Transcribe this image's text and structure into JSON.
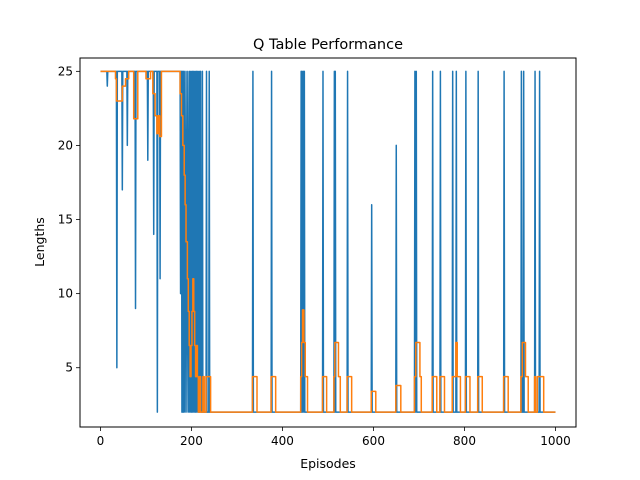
{
  "chart_data": {
    "type": "line",
    "title": "Q Table Performance",
    "xlabel": "Episodes",
    "ylabel": "Lengths",
    "xlim": [
      -45,
      1045
    ],
    "ylim": [
      1.0,
      25.9
    ],
    "xticks": [
      0,
      200,
      400,
      600,
      800,
      1000
    ],
    "yticks": [
      5,
      10,
      15,
      20,
      25
    ],
    "grid": false,
    "series": [
      {
        "color": "#1f77b4",
        "points": [
          [
            0,
            25
          ],
          [
            14,
            25
          ],
          [
            15,
            24
          ],
          [
            16,
            25
          ],
          [
            35,
            25
          ],
          [
            36,
            5
          ],
          [
            37,
            25
          ],
          [
            47,
            25
          ],
          [
            48,
            17
          ],
          [
            49,
            25
          ],
          [
            58,
            25
          ],
          [
            59,
            20
          ],
          [
            60,
            25
          ],
          [
            76,
            25
          ],
          [
            77,
            9
          ],
          [
            78,
            25
          ],
          [
            103,
            25
          ],
          [
            104,
            19
          ],
          [
            105,
            25
          ],
          [
            116,
            25
          ],
          [
            117,
            14
          ],
          [
            118,
            25
          ],
          [
            124,
            25
          ],
          [
            125,
            2
          ],
          [
            126,
            25
          ],
          [
            130,
            25
          ],
          [
            131,
            11
          ],
          [
            132,
            25
          ],
          [
            175,
            25
          ],
          [
            176,
            10
          ],
          [
            177,
            25
          ],
          [
            178,
            25
          ],
          [
            179,
            2
          ],
          [
            180,
            25
          ],
          [
            181,
            2
          ],
          [
            182,
            25
          ],
          [
            183,
            2
          ],
          [
            184,
            25
          ],
          [
            186,
            2
          ],
          [
            188,
            25
          ],
          [
            190,
            2
          ],
          [
            192,
            25
          ],
          [
            194,
            2
          ],
          [
            196,
            25
          ],
          [
            197,
            2
          ],
          [
            199,
            25
          ],
          [
            200,
            2
          ],
          [
            202,
            25
          ],
          [
            203,
            2
          ],
          [
            205,
            25
          ],
          [
            206,
            2
          ],
          [
            208,
            25
          ],
          [
            209,
            2
          ],
          [
            211,
            25
          ],
          [
            212,
            2
          ],
          [
            214,
            25
          ],
          [
            215,
            2
          ],
          [
            217,
            25
          ],
          [
            218,
            2
          ],
          [
            220,
            25
          ],
          [
            221,
            2
          ],
          [
            223,
            2
          ],
          [
            224,
            25
          ],
          [
            225,
            2
          ],
          [
            232,
            2
          ],
          [
            233,
            25
          ],
          [
            234,
            2
          ],
          [
            238,
            2
          ],
          [
            239,
            25
          ],
          [
            240,
            2
          ],
          [
            334,
            2
          ],
          [
            335,
            25
          ],
          [
            336,
            2
          ],
          [
            375,
            2
          ],
          [
            376,
            25
          ],
          [
            377,
            2
          ],
          [
            440,
            2
          ],
          [
            441,
            25
          ],
          [
            442,
            2
          ],
          [
            443,
            25
          ],
          [
            444,
            2
          ],
          [
            446,
            25
          ],
          [
            447,
            2
          ],
          [
            448,
            25
          ],
          [
            449,
            2
          ],
          [
            488,
            2
          ],
          [
            489,
            25
          ],
          [
            490,
            2
          ],
          [
            513,
            2
          ],
          [
            514,
            25
          ],
          [
            515,
            2
          ],
          [
            516,
            25
          ],
          [
            517,
            2
          ],
          [
            542,
            2
          ],
          [
            543,
            25
          ],
          [
            544,
            2
          ],
          [
            595,
            2
          ],
          [
            596,
            16
          ],
          [
            597,
            2
          ],
          [
            649,
            2
          ],
          [
            650,
            20
          ],
          [
            651,
            2
          ],
          [
            690,
            2
          ],
          [
            691,
            25
          ],
          [
            692,
            2
          ],
          [
            694,
            25
          ],
          [
            695,
            2
          ],
          [
            729,
            2
          ],
          [
            730,
            25
          ],
          [
            731,
            2
          ],
          [
            746,
            2
          ],
          [
            747,
            25
          ],
          [
            748,
            2
          ],
          [
            773,
            2
          ],
          [
            774,
            25
          ],
          [
            775,
            2
          ],
          [
            781,
            2
          ],
          [
            782,
            25
          ],
          [
            783,
            2
          ],
          [
            802,
            2
          ],
          [
            803,
            25
          ],
          [
            804,
            2
          ],
          [
            829,
            2
          ],
          [
            830,
            25
          ],
          [
            831,
            2
          ],
          [
            886,
            2
          ],
          [
            887,
            25
          ],
          [
            888,
            2
          ],
          [
            924,
            2
          ],
          [
            925,
            25
          ],
          [
            926,
            2
          ],
          [
            929,
            2
          ],
          [
            930,
            25
          ],
          [
            931,
            2
          ],
          [
            954,
            2
          ],
          [
            955,
            25
          ],
          [
            956,
            2
          ],
          [
            964,
            2
          ],
          [
            965,
            25
          ],
          [
            966,
            2
          ],
          [
            1000,
            2
          ]
        ]
      },
      {
        "color": "#ff7f0e",
        "points": [
          [
            0,
            25
          ],
          [
            33,
            25
          ],
          [
            33,
            24.5
          ],
          [
            35,
            24.5
          ],
          [
            35,
            23
          ],
          [
            48,
            23
          ],
          [
            48,
            24
          ],
          [
            55,
            24
          ],
          [
            55,
            24.5
          ],
          [
            62,
            24.5
          ],
          [
            62,
            25
          ],
          [
            73,
            25
          ],
          [
            73,
            21.8
          ],
          [
            82,
            21.8
          ],
          [
            82,
            25
          ],
          [
            100,
            25
          ],
          [
            100,
            24.5
          ],
          [
            110,
            24.5
          ],
          [
            110,
            25
          ],
          [
            115,
            25
          ],
          [
            115,
            23.5
          ],
          [
            120,
            23.5
          ],
          [
            120,
            22
          ],
          [
            124,
            22
          ],
          [
            124,
            20.8
          ],
          [
            127,
            20.8
          ],
          [
            127,
            22
          ],
          [
            130,
            22
          ],
          [
            130,
            20.6
          ],
          [
            134,
            20.6
          ],
          [
            134,
            25
          ],
          [
            173,
            25
          ],
          [
            173,
            25
          ],
          [
            175,
            25
          ],
          [
            175,
            23.5
          ],
          [
            178,
            23.5
          ],
          [
            178,
            22
          ],
          [
            181,
            22
          ],
          [
            181,
            20
          ],
          [
            184,
            20
          ],
          [
            184,
            18
          ],
          [
            186,
            18
          ],
          [
            186,
            16
          ],
          [
            188,
            16
          ],
          [
            188,
            13.5
          ],
          [
            191,
            13.5
          ],
          [
            191,
            11
          ],
          [
            193,
            11
          ],
          [
            193,
            8.8
          ],
          [
            195,
            8.8
          ],
          [
            195,
            6.5
          ],
          [
            197,
            6.5
          ],
          [
            197,
            4.4
          ],
          [
            199,
            4.4
          ],
          [
            199,
            6.5
          ],
          [
            201,
            6.5
          ],
          [
            201,
            8.8
          ],
          [
            203,
            8.8
          ],
          [
            203,
            11
          ],
          [
            205,
            11
          ],
          [
            205,
            8.8
          ],
          [
            207,
            8.8
          ],
          [
            207,
            6.5
          ],
          [
            209,
            6.5
          ],
          [
            209,
            4.4
          ],
          [
            211,
            4.4
          ],
          [
            211,
            6.5
          ],
          [
            213,
            6.5
          ],
          [
            213,
            4.4
          ],
          [
            215,
            4.4
          ],
          [
            215,
            2
          ],
          [
            218,
            2
          ],
          [
            218,
            4.4
          ],
          [
            220,
            4.4
          ],
          [
            220,
            2
          ],
          [
            225,
            2
          ],
          [
            225,
            4.4
          ],
          [
            228,
            4.4
          ],
          [
            228,
            2
          ],
          [
            232,
            2
          ],
          [
            232,
            4.4
          ],
          [
            242,
            4.4
          ],
          [
            242,
            2
          ],
          [
            334,
            2
          ],
          [
            334,
            4.4
          ],
          [
            344,
            4.4
          ],
          [
            344,
            2
          ],
          [
            375,
            2
          ],
          [
            375,
            4.4
          ],
          [
            385,
            4.4
          ],
          [
            385,
            2
          ],
          [
            440,
            2
          ],
          [
            440,
            4.4
          ],
          [
            442,
            4.4
          ],
          [
            442,
            6.7
          ],
          [
            444,
            6.7
          ],
          [
            444,
            8.9
          ],
          [
            447,
            8.9
          ],
          [
            447,
            6.7
          ],
          [
            450,
            6.7
          ],
          [
            450,
            4.4
          ],
          [
            455,
            4.4
          ],
          [
            455,
            2
          ],
          [
            488,
            2
          ],
          [
            488,
            4.4
          ],
          [
            497,
            4.4
          ],
          [
            497,
            2
          ],
          [
            513,
            2
          ],
          [
            513,
            4.4
          ],
          [
            515,
            4.4
          ],
          [
            515,
            6.7
          ],
          [
            523,
            6.7
          ],
          [
            523,
            4.4
          ],
          [
            527,
            4.4
          ],
          [
            527,
            2
          ],
          [
            542,
            2
          ],
          [
            542,
            4.4
          ],
          [
            552,
            4.4
          ],
          [
            552,
            2
          ],
          [
            595,
            2
          ],
          [
            595,
            3.4
          ],
          [
            605,
            3.4
          ],
          [
            605,
            2
          ],
          [
            649,
            2
          ],
          [
            649,
            3.8
          ],
          [
            660,
            3.8
          ],
          [
            660,
            2
          ],
          [
            690,
            2
          ],
          [
            690,
            4.4
          ],
          [
            693,
            4.4
          ],
          [
            693,
            6.7
          ],
          [
            702,
            6.7
          ],
          [
            702,
            4.4
          ],
          [
            705,
            4.4
          ],
          [
            705,
            2
          ],
          [
            729,
            2
          ],
          [
            729,
            4.4
          ],
          [
            739,
            4.4
          ],
          [
            739,
            2
          ],
          [
            746,
            2
          ],
          [
            746,
            4.4
          ],
          [
            756,
            4.4
          ],
          [
            756,
            2
          ],
          [
            773,
            2
          ],
          [
            773,
            4.4
          ],
          [
            781,
            4.4
          ],
          [
            781,
            6.7
          ],
          [
            784,
            6.7
          ],
          [
            784,
            4.4
          ],
          [
            791,
            4.4
          ],
          [
            791,
            2
          ],
          [
            802,
            2
          ],
          [
            802,
            4.4
          ],
          [
            812,
            4.4
          ],
          [
            812,
            2
          ],
          [
            829,
            2
          ],
          [
            829,
            4.4
          ],
          [
            839,
            4.4
          ],
          [
            839,
            2
          ],
          [
            886,
            2
          ],
          [
            886,
            4.4
          ],
          [
            896,
            4.4
          ],
          [
            896,
            2
          ],
          [
            924,
            2
          ],
          [
            924,
            4.4
          ],
          [
            927,
            4.4
          ],
          [
            927,
            6.7
          ],
          [
            934,
            6.7
          ],
          [
            934,
            4.4
          ],
          [
            940,
            4.4
          ],
          [
            940,
            2
          ],
          [
            954,
            2
          ],
          [
            954,
            4.4
          ],
          [
            956,
            4.4
          ],
          [
            956,
            2
          ],
          [
            960,
            2
          ],
          [
            960,
            4.4
          ],
          [
            974,
            4.4
          ],
          [
            974,
            2
          ],
          [
            1000,
            2
          ]
        ]
      }
    ]
  }
}
